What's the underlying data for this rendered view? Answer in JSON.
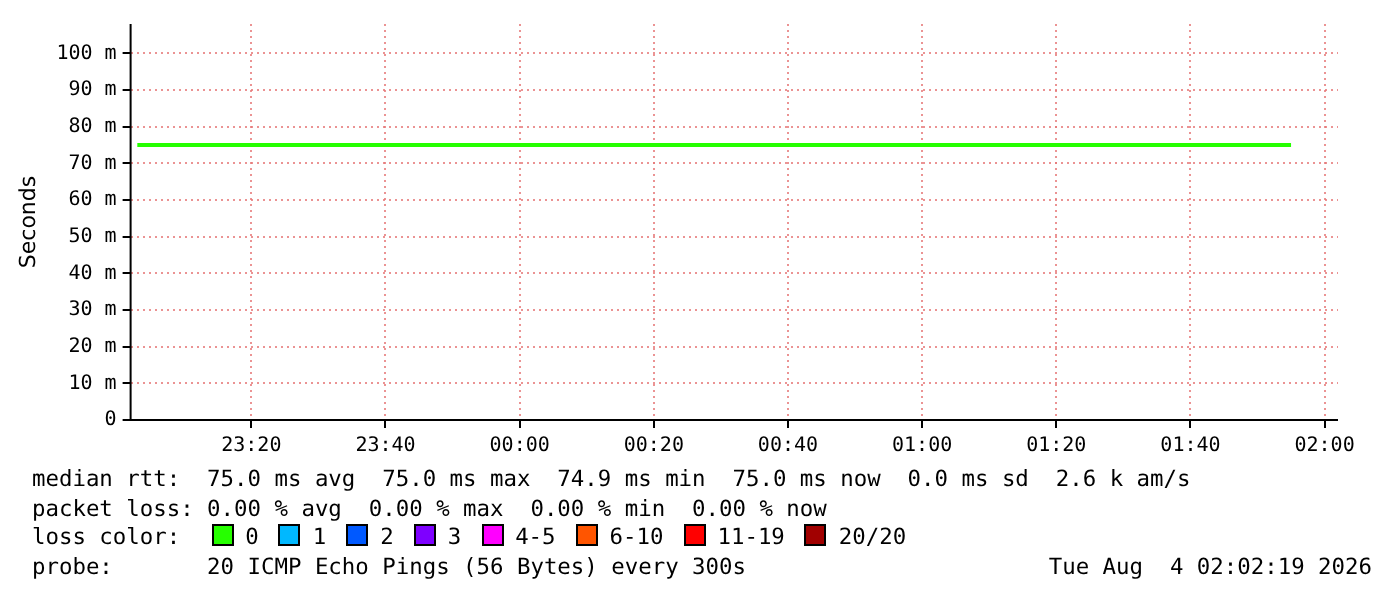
{
  "chart_data": {
    "type": "line",
    "ylabel": "Seconds",
    "legend_title": "loss color:",
    "legend": "bottom",
    "grid": true,
    "marker": "none",
    "xlim": [
      "2026-08-03T23:02",
      "2026-08-04T02:02"
    ],
    "xticks": [
      {
        "value": "2026-08-03T23:20",
        "label": "23:20"
      },
      {
        "value": "2026-08-03T23:40",
        "label": "23:40"
      },
      {
        "value": "2026-08-04T00:00",
        "label": "00:00"
      },
      {
        "value": "2026-08-04T00:20",
        "label": "00:20"
      },
      {
        "value": "2026-08-04T00:40",
        "label": "00:40"
      },
      {
        "value": "2026-08-04T01:00",
        "label": "01:00"
      },
      {
        "value": "2026-08-04T01:20",
        "label": "01:20"
      },
      {
        "value": "2026-08-04T01:40",
        "label": "01:40"
      },
      {
        "value": "2026-08-04T02:00",
        "label": "02:00"
      }
    ],
    "ylim": [
      0,
      108
    ],
    "yticks": [
      0,
      {
        "value": 10,
        "label": "10 m"
      },
      {
        "value": 20,
        "label": "20 m"
      },
      {
        "value": 30,
        "label": "30 m"
      },
      {
        "value": 40,
        "label": "40 m"
      },
      {
        "value": 50,
        "label": "50 m"
      },
      {
        "value": 60,
        "label": "60 m"
      },
      {
        "value": 70,
        "label": "70 m"
      },
      {
        "value": 80,
        "label": "80 m"
      },
      {
        "value": 90,
        "label": "90 m"
      },
      {
        "value": 100,
        "label": "100 m"
      }
    ],
    "series": [
      {
        "name": "0",
        "color": "#26ff00",
        "x": [
          "2026-08-03T23:03",
          "2026-08-04T01:55"
        ],
        "values": [
          75,
          75
        ]
      },
      {
        "name": "1",
        "color": "#00b8ff",
        "values": [
          null,
          null
        ]
      },
      {
        "name": "2",
        "color": "#0059ff",
        "values": [
          null,
          null
        ]
      },
      {
        "name": "3",
        "color": "#7e00ff",
        "values": [
          null,
          null
        ]
      },
      {
        "name": "4-5",
        "color": "#ff00ff",
        "values": [
          null,
          null
        ]
      },
      {
        "name": "6-10",
        "color": "#ff5500",
        "values": [
          null,
          null
        ]
      },
      {
        "name": "11-19",
        "color": "#ff0000",
        "values": [
          null,
          null
        ]
      },
      {
        "name": "20/20",
        "color": "#a10000",
        "values": [
          null,
          null
        ]
      }
    ],
    "annotations": [
      "median rtt:  75.0 ms avg  75.0 ms max  74.9 ms min  75.0 ms now  0.0 ms sd  2.6 k am/s",
      "packet loss: 0.00 % avg  0.00 % max  0.00 % min  0.00 % now",
      "probe:       20 ICMP Echo Pings (56 Bytes) every 300s",
      "Tue Aug  4 02:02:19 2026"
    ]
  }
}
